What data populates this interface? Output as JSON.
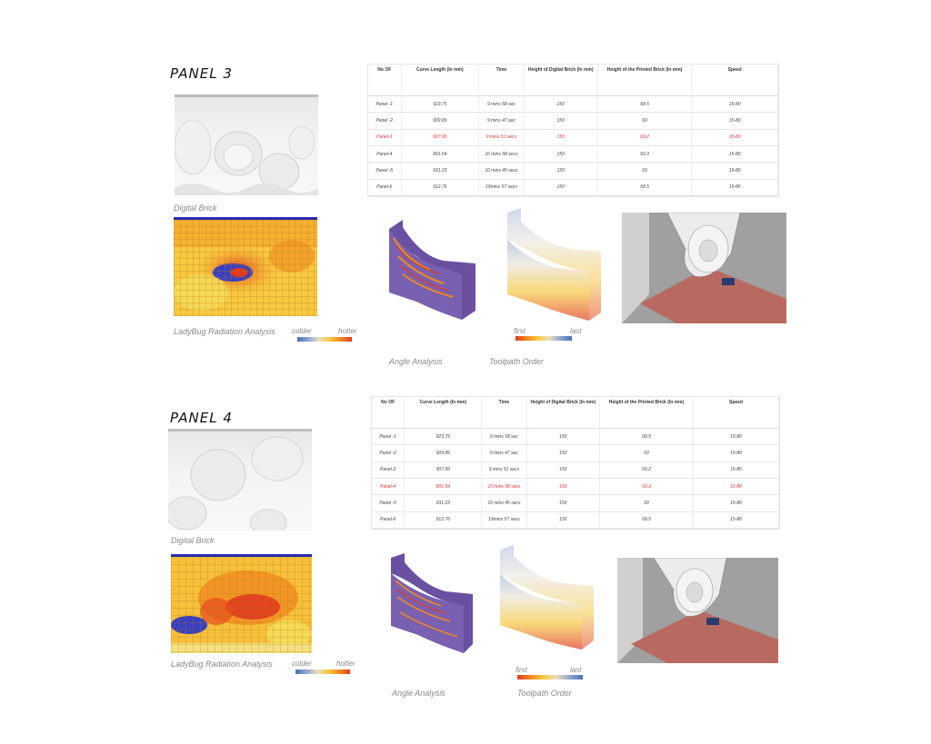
{
  "panels": [
    {
      "title": "PANEL 3",
      "digital_brick_caption": "Digital Brick",
      "ladybug_caption": "LadyBug Radiation Analysis",
      "legend_colder": "colder",
      "legend_hotter": "hotter",
      "angle_caption": "Angle Analysis",
      "toolpath_caption": "Toolpath Order",
      "toolpath_first": "first",
      "toolpath_last": "last",
      "table": {
        "headers": [
          "No OF",
          "Curve Length (In mm)",
          "Time",
          "Height of Digital Brick (In mm)",
          "Height of the Printed Brick (In mm)",
          "Speed"
        ],
        "rows": [
          [
            "Panel -1",
            "923.75",
            "9 mins 58 sec",
            "150",
            "68.5",
            "15-80"
          ],
          [
            "Panel -2",
            "909.89",
            "9 mins 47 sec",
            "150",
            "69",
            "15-80"
          ],
          [
            "Panel-3",
            "907.99",
            "9 mins 51 secs",
            "150",
            "69.2",
            "15-80"
          ],
          [
            "Panel-4",
            "891.54",
            "10 mins 58 secs",
            "150",
            "69.3",
            "15-80"
          ],
          [
            "Panel -5",
            "931.23",
            "10 mins 45 secs",
            "150",
            "69",
            "15-80"
          ],
          [
            "Panel-6",
            "912.76",
            "19mins 57 secs",
            "150",
            "68.5",
            "15-80"
          ]
        ],
        "highlight_row": 2
      }
    },
    {
      "title": "PANEL 4",
      "digital_brick_caption": "Digital Brick",
      "ladybug_caption": "LadyBug Radiation Analysis",
      "legend_colder": "colder",
      "legend_hotter": "hotter",
      "angle_caption": "Angle Analysis",
      "toolpath_caption": "Toolpath Order",
      "toolpath_first": "first",
      "toolpath_last": "last",
      "table": {
        "headers": [
          "No OF",
          "Curve Length (In mm)",
          "Time",
          "Height of Digital Brick (In mm)",
          "Height of the Printed Brick (In mm)",
          "Speed"
        ],
        "rows": [
          [
            "Panel -1",
            "923.75",
            "9 mins 58 sec",
            "150",
            "68.5",
            "15-80"
          ],
          [
            "Panel -2",
            "909.89",
            "9 mins 47 sec",
            "150",
            "69",
            "15-80"
          ],
          [
            "Panel-3",
            "907.99",
            "9 mins 51 secs",
            "150",
            "69.2",
            "15-80"
          ],
          [
            "Panel-4",
            "891.54",
            "10 mins 58 secs",
            "150",
            "69.3",
            "15-80"
          ],
          [
            "Panel -5",
            "931.23",
            "10 mins 45 secs",
            "150",
            "69",
            "15-80"
          ],
          [
            "Panel-6",
            "912.76",
            "19mins 57 secs",
            "150",
            "68.5",
            "15-80"
          ]
        ],
        "highlight_row": 3
      }
    }
  ],
  "colors": {
    "highlight": "#e03030",
    "heat_hot": "#e03a20",
    "heat_warm": "#f7c840",
    "heat_cold": "#3a50c0",
    "bed": "#b86a60"
  }
}
